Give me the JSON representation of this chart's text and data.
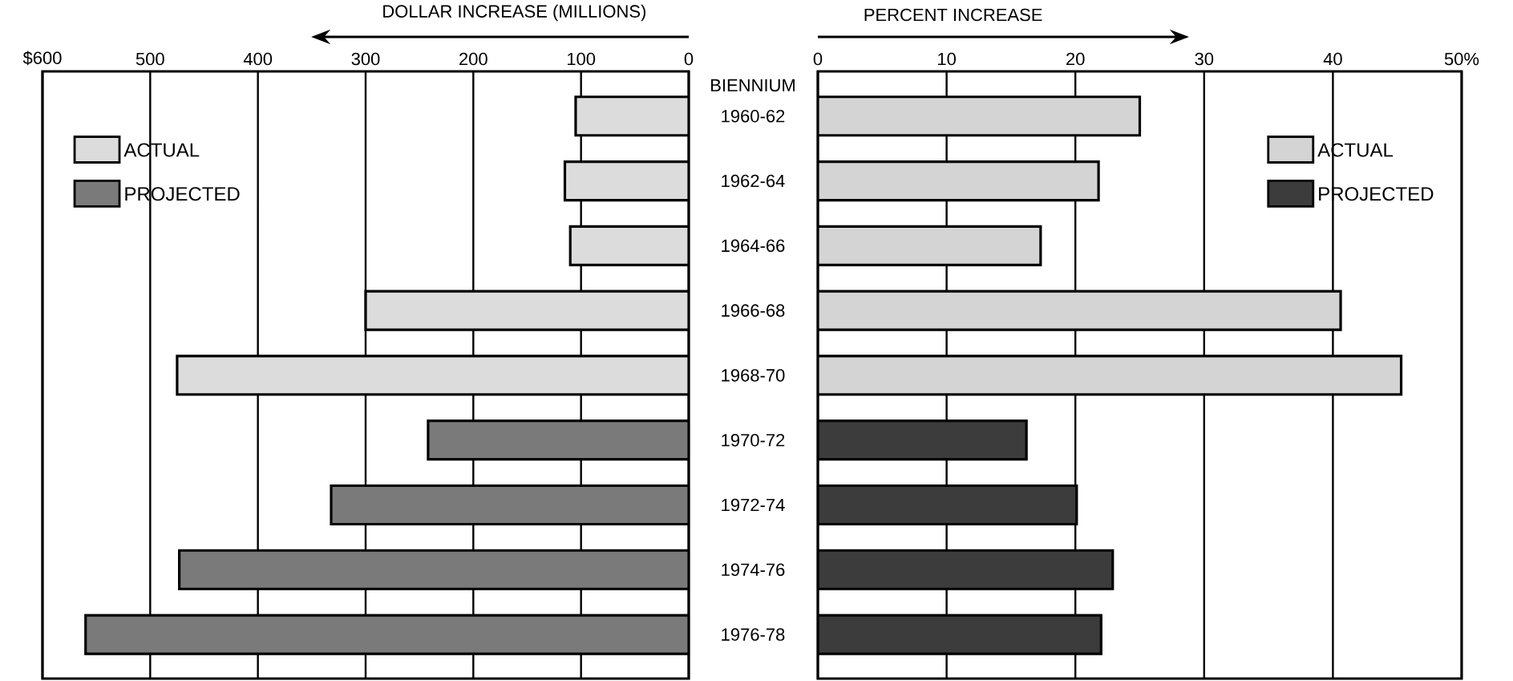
{
  "chart_data": [
    {
      "type": "bar",
      "orientation": "horizontal",
      "xlabel": "DOLLAR INCREASE (MILLIONS)",
      "ylabel": "BIENNIUM",
      "categories": [
        "1960-62",
        "1962-64",
        "1964-66",
        "1966-68",
        "1968-70",
        "1970-72",
        "1972-74",
        "1974-76",
        "1976-78"
      ],
      "series": [
        {
          "name": "ACTUAL",
          "color": "#dcdcdc",
          "values": [
            105,
            115,
            110,
            300,
            475,
            null,
            null,
            null,
            null
          ]
        },
        {
          "name": "PROJECTED",
          "color": "#7a7a7a",
          "values": [
            null,
            null,
            null,
            null,
            null,
            242,
            332,
            473,
            560
          ]
        }
      ],
      "xlim": [
        600,
        0
      ],
      "xticks": [
        {
          "value": 600,
          "label": "$600"
        },
        500,
        400,
        300,
        200,
        100,
        0
      ],
      "grid": "x",
      "legend": "top left"
    },
    {
      "type": "bar",
      "orientation": "horizontal",
      "xlabel": "PERCENT INCREASE",
      "categories": [
        "1960-62",
        "1962-64",
        "1964-66",
        "1966-68",
        "1968-70",
        "1970-72",
        "1972-74",
        "1974-76",
        "1976-78"
      ],
      "series": [
        {
          "name": "ACTUAL",
          "color": "#d4d4d4",
          "values": [
            25,
            21.8,
            17.3,
            40.6,
            45.3,
            null,
            null,
            null,
            null
          ]
        },
        {
          "name": "PROJECTED",
          "color": "#3c3c3c",
          "values": [
            null,
            null,
            null,
            null,
            null,
            16.2,
            20.1,
            22.9,
            22.0
          ]
        }
      ],
      "xlim": [
        0,
        50
      ],
      "xticks": [
        0,
        10,
        20,
        30,
        40,
        {
          "value": 50,
          "label": "50%"
        }
      ],
      "grid": "x",
      "legend": "top right",
      "tick_labels": "x"
    }
  ]
}
